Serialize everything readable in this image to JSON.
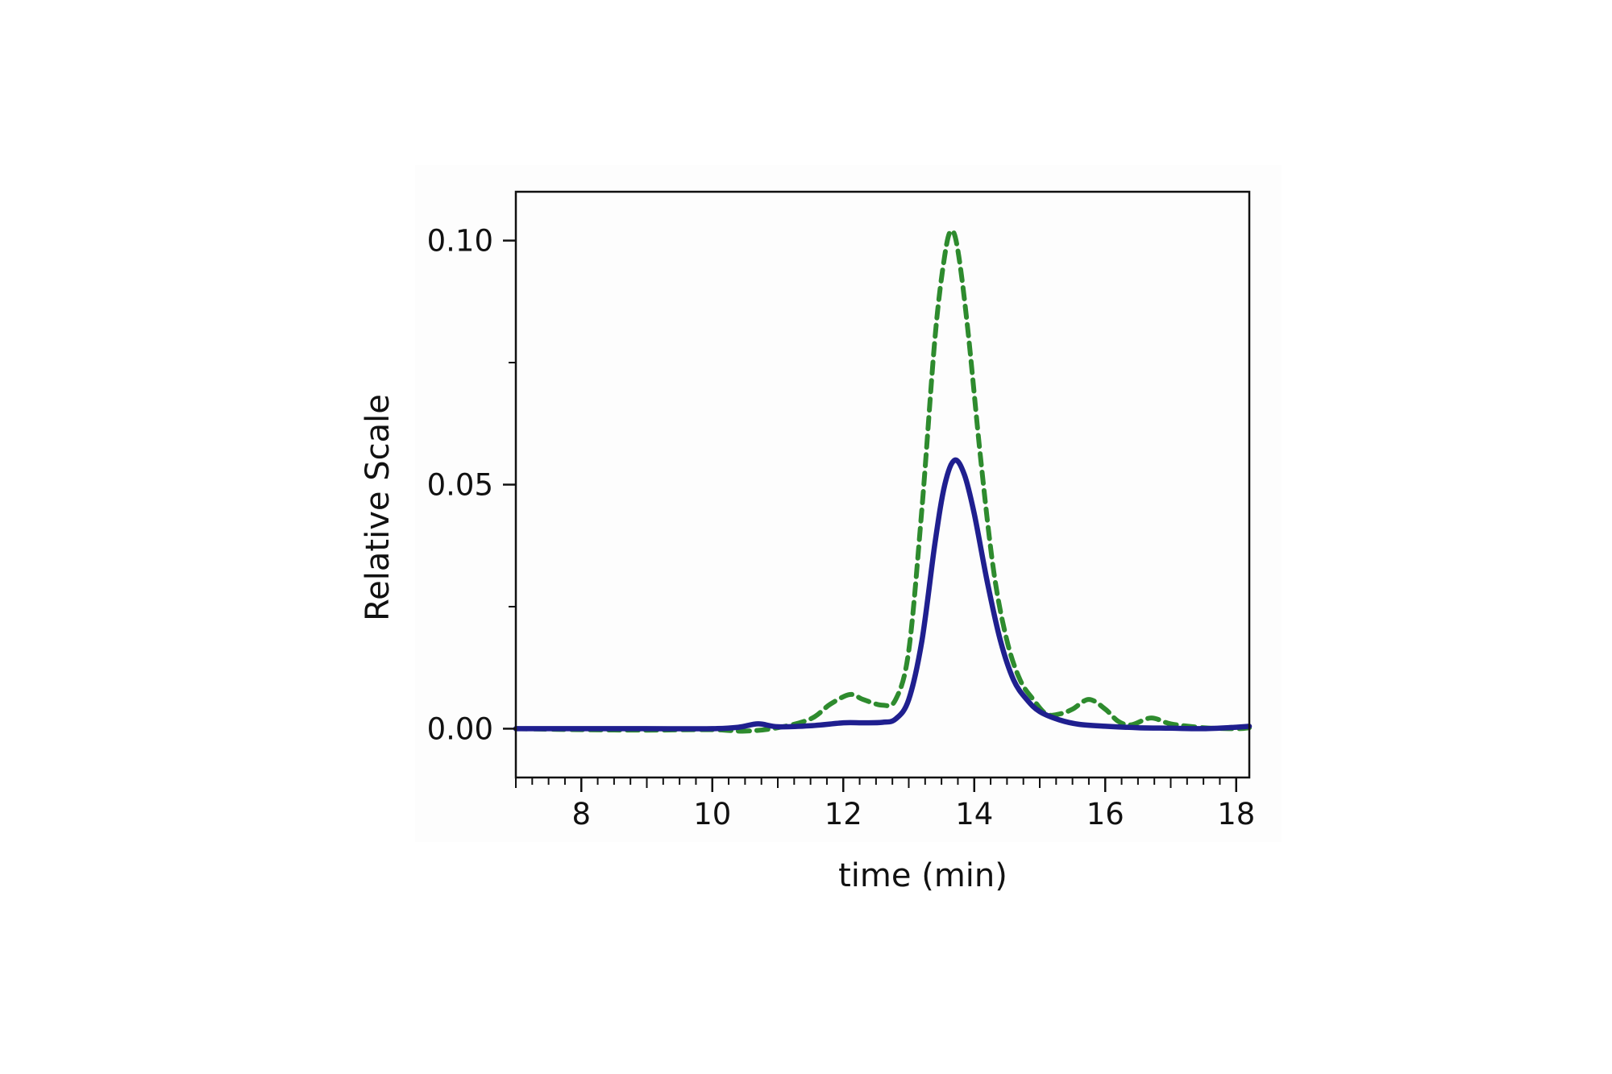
{
  "chart_data": {
    "type": "line",
    "title": "",
    "xlabel": "time (min)",
    "ylabel": "Relative Scale",
    "xlim": [
      7.0,
      18.2
    ],
    "ylim": [
      -0.01,
      0.11
    ],
    "x_ticks": [
      8,
      10,
      12,
      14,
      16,
      18
    ],
    "x_tick_labels": [
      "8",
      "10",
      "12",
      "14",
      "16",
      "18"
    ],
    "x_minor_step": 0.25,
    "y_ticks": [
      0.0,
      0.05,
      0.1
    ],
    "y_tick_labels": [
      "0.00",
      "0.05",
      "0.10"
    ],
    "y_minor_ticks": [
      0.025,
      0.075
    ],
    "grid": false,
    "legend": "none",
    "series": [
      {
        "color": "#1f1f8f",
        "style": "solid",
        "x": [
          7.0,
          8.0,
          9.0,
          10.0,
          10.4,
          10.7,
          11.0,
          11.5,
          12.0,
          12.3,
          12.6,
          12.8,
          13.0,
          13.2,
          13.4,
          13.55,
          13.7,
          13.85,
          14.0,
          14.2,
          14.4,
          14.6,
          14.8,
          15.0,
          15.3,
          15.6,
          16.0,
          16.5,
          17.0,
          17.5,
          18.0,
          18.2
        ],
        "y": [
          0.0,
          0.0,
          0.0,
          0.0,
          0.0003,
          0.001,
          0.0004,
          0.0006,
          0.0012,
          0.0012,
          0.0013,
          0.002,
          0.006,
          0.018,
          0.038,
          0.05,
          0.055,
          0.052,
          0.044,
          0.03,
          0.018,
          0.01,
          0.006,
          0.0035,
          0.0018,
          0.0009,
          0.0005,
          0.0002,
          0.0001,
          0.0,
          0.0003,
          0.0005
        ]
      },
      {
        "color": "#2e8b2e",
        "style": "dashed",
        "x": [
          7.0,
          8.0,
          9.0,
          10.0,
          10.5,
          11.0,
          11.5,
          11.8,
          12.1,
          12.3,
          12.6,
          12.8,
          13.0,
          13.2,
          13.4,
          13.55,
          13.65,
          13.75,
          13.9,
          14.1,
          14.3,
          14.5,
          14.7,
          14.9,
          15.1,
          15.3,
          15.5,
          15.75,
          16.0,
          16.2,
          16.4,
          16.7,
          17.0,
          17.5,
          18.0,
          18.2
        ],
        "y": [
          0.0,
          -0.0002,
          -0.0003,
          -0.0002,
          -0.0005,
          0.0002,
          0.002,
          0.005,
          0.007,
          0.006,
          0.0048,
          0.006,
          0.016,
          0.045,
          0.08,
          0.097,
          0.102,
          0.098,
          0.082,
          0.055,
          0.032,
          0.018,
          0.01,
          0.006,
          0.003,
          0.003,
          0.004,
          0.006,
          0.004,
          0.0015,
          0.0008,
          0.0022,
          0.001,
          0.0002,
          0.0,
          0.0002
        ]
      }
    ]
  }
}
